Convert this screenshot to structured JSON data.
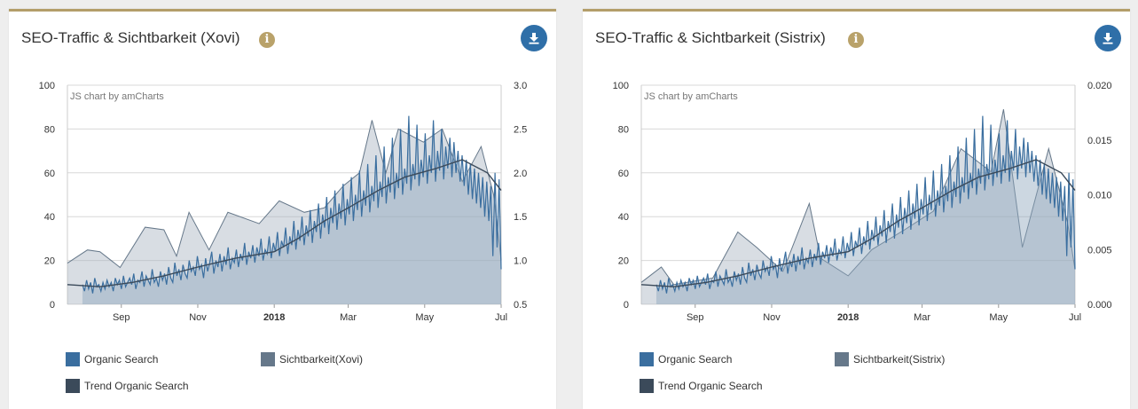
{
  "panels": [
    {
      "title": "SEO-Traffic & Sichtbarkeit (Xovi)",
      "watermark": "JS chart by amCharts",
      "legend": [
        {
          "label": "Organic Search",
          "color": "#3a6e9f"
        },
        {
          "label": "Sichtbarkeit(Xovi)",
          "color": "#66788a"
        },
        {
          "label": "Trend Organic Search",
          "color": "#3b4a5a"
        }
      ]
    },
    {
      "title": "SEO-Traffic & Sichtbarkeit (Sistrix)",
      "watermark": "JS chart by amCharts",
      "legend": [
        {
          "label": "Organic Search",
          "color": "#3a6e9f"
        },
        {
          "label": "Sichtbarkeit(Sistrix)",
          "color": "#66788a"
        },
        {
          "label": "Trend Organic Search",
          "color": "#3b4a5a"
        }
      ]
    }
  ],
  "chart_data": [
    {
      "type": "line",
      "title": "SEO-Traffic & Sichtbarkeit (Xovi)",
      "x_ticks": [
        "Sep",
        "Nov",
        "2018",
        "Mar",
        "May",
        "Jul"
      ],
      "y_left_ticks": [
        "0",
        "20",
        "40",
        "60",
        "80",
        "100"
      ],
      "y_left_range": [
        0,
        100
      ],
      "y_right_ticks": [
        "0.5",
        "1.0",
        "1.5",
        "2.0",
        "2.5",
        "3.0"
      ],
      "y_right_range": [
        0.5,
        3.0
      ],
      "grid": true,
      "legend_position": "bottom",
      "x_range": [
        "2017-07-20",
        "2018-07-01"
      ],
      "series": [
        {
          "name": "Organic Search",
          "axis": "left",
          "color": "#3a6e9f",
          "values": [
            9,
            6,
            11,
            7,
            10,
            5,
            12,
            8,
            9,
            6,
            10,
            7,
            11,
            8,
            10,
            6,
            12,
            9,
            11,
            7,
            13,
            8,
            10,
            12,
            9,
            14,
            7,
            11,
            10,
            15,
            8,
            13,
            11,
            9,
            16,
            10,
            12,
            8,
            15,
            11,
            14,
            9,
            17,
            12,
            10,
            19,
            13,
            16,
            11,
            18,
            14,
            12,
            20,
            15,
            17,
            13,
            22,
            16,
            18,
            12,
            21,
            15,
            19,
            24,
            14,
            20,
            17,
            23,
            15,
            22,
            18,
            26,
            16,
            21,
            19,
            25,
            17,
            23,
            20,
            28,
            18,
            24,
            21,
            27,
            19,
            26,
            22,
            30,
            20,
            25,
            23,
            31,
            21,
            28,
            24,
            33,
            22,
            29,
            26,
            35,
            23,
            31,
            27,
            38,
            25,
            34,
            29,
            40,
            27,
            36,
            31,
            43,
            28,
            38,
            33,
            46,
            30,
            41,
            35,
            49,
            32,
            44,
            37,
            52,
            34,
            46,
            39,
            55,
            36,
            48,
            41,
            58,
            38,
            50,
            43,
            61,
            40,
            52,
            45,
            64,
            42,
            54,
            47,
            68,
            44,
            56,
            49,
            72,
            46,
            58,
            51,
            76,
            48,
            60,
            53,
            80,
            50,
            62,
            55,
            86,
            52,
            64,
            57,
            82,
            54,
            66,
            58,
            78,
            55,
            68,
            60,
            84,
            56,
            70,
            61,
            80,
            57,
            72,
            62,
            76,
            58,
            74,
            60,
            70,
            56,
            68,
            54,
            66,
            50,
            64,
            48,
            62,
            46,
            60,
            44,
            58,
            40,
            56,
            38,
            54,
            22,
            60,
            26,
            57,
            16
          ]
        },
        {
          "name": "Sichtbarkeit(Xovi)",
          "axis": "right",
          "color": "#66788a",
          "points": [
            [
              "2017-07-20",
              0.97
            ],
            [
              "2017-08-05",
              1.12
            ],
            [
              "2017-08-15",
              1.1
            ],
            [
              "2017-08-31",
              0.92
            ],
            [
              "2017-09-20",
              1.38
            ],
            [
              "2017-10-05",
              1.35
            ],
            [
              "2017-10-15",
              1.05
            ],
            [
              "2017-10-25",
              1.55
            ],
            [
              "2017-11-10",
              1.12
            ],
            [
              "2017-11-25",
              1.55
            ],
            [
              "2017-12-20",
              1.42
            ],
            [
              "2018-01-05",
              1.68
            ],
            [
              "2018-01-25",
              1.55
            ],
            [
              "2018-02-10",
              1.6
            ],
            [
              "2018-02-25",
              1.85
            ],
            [
              "2018-03-10",
              2.0
            ],
            [
              "2018-03-20",
              2.6
            ],
            [
              "2018-03-31",
              2.0
            ],
            [
              "2018-04-10",
              2.5
            ],
            [
              "2018-04-30",
              2.35
            ],
            [
              "2018-05-15",
              2.5
            ],
            [
              "2018-05-31",
              1.9
            ],
            [
              "2018-06-15",
              2.3
            ],
            [
              "2018-06-25",
              1.75
            ],
            [
              "2018-07-01",
              1.0
            ]
          ]
        },
        {
          "name": "Trend Organic Search",
          "axis": "left",
          "color": "#3b4a5a",
          "points": [
            [
              "2017-07-20",
              9
            ],
            [
              "2017-08-15",
              8
            ],
            [
              "2017-09-10",
              10
            ],
            [
              "2017-10-05",
              13
            ],
            [
              "2017-11-01",
              17
            ],
            [
              "2017-12-01",
              21
            ],
            [
              "2018-01-01",
              24
            ],
            [
              "2018-01-20",
              30
            ],
            [
              "2018-02-10",
              38
            ],
            [
              "2018-03-01",
              44
            ],
            [
              "2018-03-25",
              52
            ],
            [
              "2018-04-15",
              58
            ],
            [
              "2018-05-10",
              62
            ],
            [
              "2018-05-31",
              66
            ],
            [
              "2018-06-20",
              60
            ],
            [
              "2018-07-01",
              52
            ]
          ]
        }
      ]
    },
    {
      "type": "line",
      "title": "SEO-Traffic & Sichtbarkeit (Sistrix)",
      "x_ticks": [
        "Sep",
        "Nov",
        "2018",
        "Mar",
        "May",
        "Jul"
      ],
      "y_left_ticks": [
        "0",
        "20",
        "40",
        "60",
        "80",
        "100"
      ],
      "y_left_range": [
        0,
        100
      ],
      "y_right_ticks": [
        "0.000",
        "0.005",
        "0.010",
        "0.015",
        "0.020"
      ],
      "y_right_range": [
        0,
        0.02
      ],
      "grid": true,
      "legend_position": "bottom",
      "x_range": [
        "2017-07-20",
        "2018-07-01"
      ],
      "series": [
        {
          "name": "Organic Search",
          "axis": "left",
          "color": "#3a6e9f",
          "values": [
            9,
            6,
            11,
            7,
            10,
            5,
            12,
            8,
            9,
            6,
            10,
            7,
            11,
            8,
            10,
            6,
            12,
            9,
            11,
            7,
            13,
            8,
            10,
            12,
            9,
            14,
            7,
            11,
            10,
            15,
            8,
            13,
            11,
            9,
            16,
            10,
            12,
            8,
            15,
            11,
            14,
            9,
            17,
            12,
            10,
            19,
            13,
            16,
            11,
            18,
            14,
            12,
            20,
            15,
            17,
            13,
            22,
            16,
            18,
            12,
            21,
            15,
            19,
            24,
            14,
            20,
            17,
            23,
            15,
            22,
            18,
            26,
            16,
            21,
            19,
            25,
            17,
            23,
            20,
            28,
            18,
            24,
            21,
            27,
            19,
            26,
            22,
            30,
            20,
            25,
            23,
            31,
            21,
            28,
            24,
            33,
            22,
            29,
            26,
            35,
            23,
            31,
            27,
            38,
            25,
            34,
            29,
            40,
            27,
            36,
            31,
            43,
            28,
            38,
            33,
            46,
            30,
            41,
            35,
            49,
            32,
            44,
            37,
            52,
            34,
            46,
            39,
            55,
            36,
            48,
            41,
            58,
            38,
            50,
            43,
            61,
            40,
            52,
            45,
            64,
            42,
            54,
            47,
            68,
            44,
            56,
            49,
            72,
            46,
            58,
            51,
            76,
            48,
            60,
            53,
            80,
            50,
            62,
            55,
            86,
            52,
            64,
            57,
            82,
            54,
            66,
            58,
            78,
            55,
            68,
            60,
            84,
            56,
            70,
            61,
            80,
            57,
            72,
            62,
            76,
            58,
            74,
            60,
            70,
            56,
            68,
            54,
            66,
            50,
            64,
            48,
            62,
            46,
            60,
            44,
            58,
            40,
            56,
            38,
            54,
            22,
            60,
            26,
            57,
            16
          ]
        },
        {
          "name": "Sichtbarkeit(Sistrix)",
          "axis": "right",
          "color": "#66788a",
          "points": [
            [
              "2017-07-20",
              0.002
            ],
            [
              "2017-08-05",
              0.0034
            ],
            [
              "2017-08-15",
              0.0018
            ],
            [
              "2017-09-15",
              0.0024
            ],
            [
              "2017-10-05",
              0.0066
            ],
            [
              "2017-10-20",
              0.0052
            ],
            [
              "2017-11-10",
              0.003
            ],
            [
              "2017-12-01",
              0.0092
            ],
            [
              "2017-12-10",
              0.0042
            ],
            [
              "2018-01-01",
              0.0026
            ],
            [
              "2018-01-20",
              0.005
            ],
            [
              "2018-02-15",
              0.0068
            ],
            [
              "2018-03-10",
              0.0085
            ],
            [
              "2018-04-01",
              0.0142
            ],
            [
              "2018-04-25",
              0.0121
            ],
            [
              "2018-05-05",
              0.0178
            ],
            [
              "2018-05-20",
              0.0052
            ],
            [
              "2018-06-10",
              0.0142
            ],
            [
              "2018-06-25",
              0.0075
            ],
            [
              "2018-07-01",
              0.0032
            ]
          ]
        },
        {
          "name": "Trend Organic Search",
          "axis": "left",
          "color": "#3b4a5a",
          "points": [
            [
              "2017-07-20",
              9
            ],
            [
              "2017-08-15",
              8
            ],
            [
              "2017-09-10",
              10
            ],
            [
              "2017-10-05",
              13
            ],
            [
              "2017-11-01",
              17
            ],
            [
              "2017-12-01",
              21
            ],
            [
              "2018-01-01",
              24
            ],
            [
              "2018-01-20",
              30
            ],
            [
              "2018-02-10",
              38
            ],
            [
              "2018-03-01",
              44
            ],
            [
              "2018-03-25",
              52
            ],
            [
              "2018-04-15",
              58
            ],
            [
              "2018-05-10",
              62
            ],
            [
              "2018-05-31",
              66
            ],
            [
              "2018-06-20",
              60
            ],
            [
              "2018-07-01",
              52
            ]
          ]
        }
      ]
    }
  ]
}
